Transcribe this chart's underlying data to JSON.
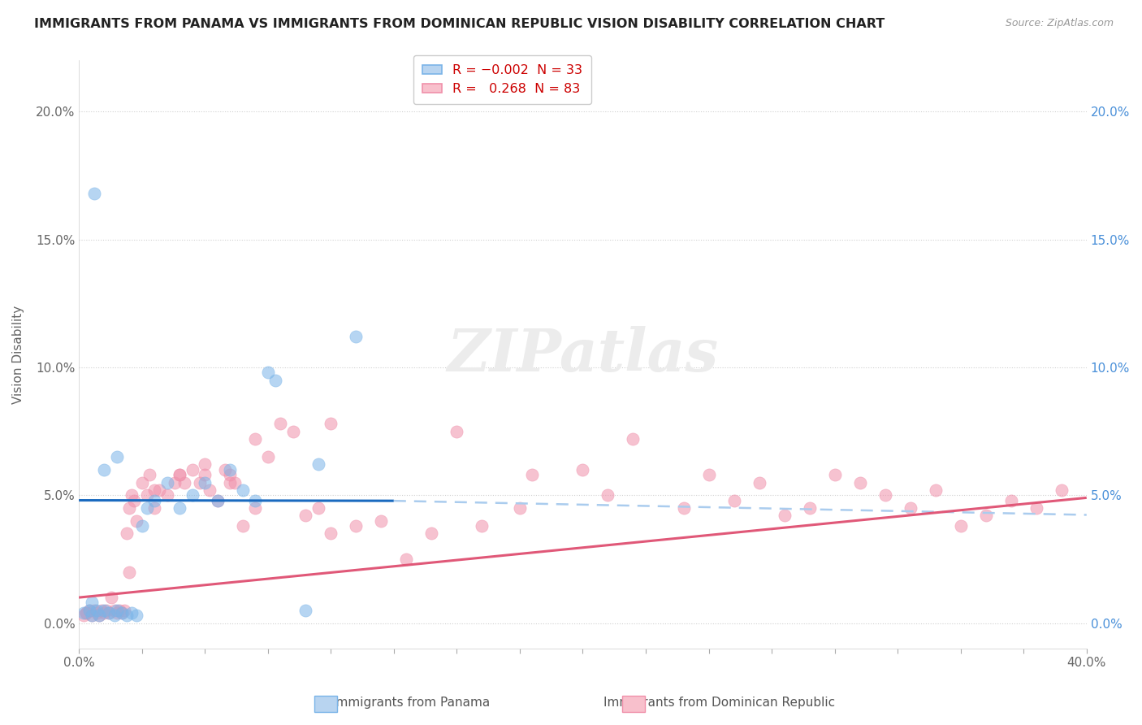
{
  "title": "IMMIGRANTS FROM PANAMA VS IMMIGRANTS FROM DOMINICAN REPUBLIC VISION DISABILITY CORRELATION CHART",
  "source": "Source: ZipAtlas.com",
  "ylabel": "Vision Disability",
  "ytick_vals": [
    0.0,
    5.0,
    10.0,
    15.0,
    20.0
  ],
  "xlim": [
    0.0,
    40.0
  ],
  "ylim": [
    -1.0,
    22.0
  ],
  "panama_color": "#7ab4e8",
  "dominican_color": "#f090aa",
  "panama_line_color": "#1a6abf",
  "dominican_line_color": "#e05878",
  "panama_line_y": [
    4.8,
    4.78
  ],
  "panama_line_x": [
    0.0,
    12.5
  ],
  "dominican_line_x": [
    0.0,
    40.0
  ],
  "dominican_line_y": [
    1.0,
    4.9
  ],
  "panama_scatter": [
    [
      0.2,
      0.4
    ],
    [
      0.4,
      0.5
    ],
    [
      0.5,
      0.3
    ],
    [
      0.7,
      0.5
    ],
    [
      0.8,
      0.3
    ],
    [
      1.0,
      0.5
    ],
    [
      1.2,
      0.4
    ],
    [
      1.4,
      0.3
    ],
    [
      1.5,
      0.5
    ],
    [
      1.7,
      0.4
    ],
    [
      1.9,
      0.3
    ],
    [
      2.1,
      0.4
    ],
    [
      2.3,
      0.3
    ],
    [
      2.5,
      3.8
    ],
    [
      2.7,
      4.5
    ],
    [
      3.0,
      4.8
    ],
    [
      3.5,
      5.5
    ],
    [
      4.0,
      4.5
    ],
    [
      4.5,
      5.0
    ],
    [
      5.0,
      5.5
    ],
    [
      5.5,
      4.8
    ],
    [
      6.0,
      6.0
    ],
    [
      6.5,
      5.2
    ],
    [
      7.0,
      4.8
    ],
    [
      7.5,
      9.8
    ],
    [
      7.8,
      9.5
    ],
    [
      9.0,
      0.5
    ],
    [
      9.5,
      6.2
    ],
    [
      1.0,
      6.0
    ],
    [
      1.5,
      6.5
    ],
    [
      0.6,
      16.8
    ],
    [
      11.0,
      11.2
    ],
    [
      0.5,
      0.8
    ]
  ],
  "dominican_scatter": [
    [
      0.2,
      0.3
    ],
    [
      0.3,
      0.4
    ],
    [
      0.4,
      0.5
    ],
    [
      0.5,
      0.3
    ],
    [
      0.6,
      0.5
    ],
    [
      0.7,
      0.4
    ],
    [
      0.8,
      0.3
    ],
    [
      0.9,
      0.5
    ],
    [
      1.0,
      0.4
    ],
    [
      1.1,
      0.5
    ],
    [
      1.2,
      0.4
    ],
    [
      1.3,
      1.0
    ],
    [
      1.4,
      0.5
    ],
    [
      1.5,
      0.4
    ],
    [
      1.6,
      0.5
    ],
    [
      1.7,
      0.4
    ],
    [
      1.8,
      0.5
    ],
    [
      1.9,
      3.5
    ],
    [
      2.0,
      4.5
    ],
    [
      2.1,
      5.0
    ],
    [
      2.2,
      4.8
    ],
    [
      2.3,
      4.0
    ],
    [
      2.5,
      5.5
    ],
    [
      2.7,
      5.0
    ],
    [
      2.8,
      5.8
    ],
    [
      3.0,
      4.5
    ],
    [
      3.2,
      5.2
    ],
    [
      3.5,
      5.0
    ],
    [
      3.8,
      5.5
    ],
    [
      4.0,
      5.8
    ],
    [
      4.2,
      5.5
    ],
    [
      4.5,
      6.0
    ],
    [
      4.8,
      5.5
    ],
    [
      5.0,
      5.8
    ],
    [
      5.2,
      5.2
    ],
    [
      5.5,
      4.8
    ],
    [
      5.8,
      6.0
    ],
    [
      6.0,
      5.8
    ],
    [
      6.2,
      5.5
    ],
    [
      6.5,
      3.8
    ],
    [
      7.0,
      4.5
    ],
    [
      7.5,
      6.5
    ],
    [
      8.0,
      7.8
    ],
    [
      8.5,
      7.5
    ],
    [
      9.0,
      4.2
    ],
    [
      9.5,
      4.5
    ],
    [
      10.0,
      7.8
    ],
    [
      11.0,
      3.8
    ],
    [
      12.0,
      4.0
    ],
    [
      13.0,
      2.5
    ],
    [
      14.0,
      3.5
    ],
    [
      15.0,
      7.5
    ],
    [
      16.0,
      3.8
    ],
    [
      17.5,
      4.5
    ],
    [
      18.0,
      5.8
    ],
    [
      20.0,
      6.0
    ],
    [
      21.0,
      5.0
    ],
    [
      22.0,
      7.2
    ],
    [
      24.0,
      4.5
    ],
    [
      25.0,
      5.8
    ],
    [
      26.0,
      4.8
    ],
    [
      27.0,
      5.5
    ],
    [
      28.0,
      4.2
    ],
    [
      29.0,
      4.5
    ],
    [
      30.0,
      5.8
    ],
    [
      31.0,
      5.5
    ],
    [
      32.0,
      5.0
    ],
    [
      33.0,
      4.5
    ],
    [
      34.0,
      5.2
    ],
    [
      35.0,
      3.8
    ],
    [
      36.0,
      4.2
    ],
    [
      37.0,
      4.8
    ],
    [
      38.0,
      4.5
    ],
    [
      39.0,
      5.2
    ],
    [
      2.0,
      2.0
    ],
    [
      3.0,
      5.2
    ],
    [
      4.0,
      5.8
    ],
    [
      5.0,
      6.2
    ],
    [
      6.0,
      5.5
    ],
    [
      7.0,
      7.2
    ],
    [
      10.0,
      3.5
    ],
    [
      0.3,
      0.4
    ]
  ],
  "watermark_text": "ZIPatlas",
  "background_color": "#ffffff",
  "grid_color": "#d0d0d0"
}
